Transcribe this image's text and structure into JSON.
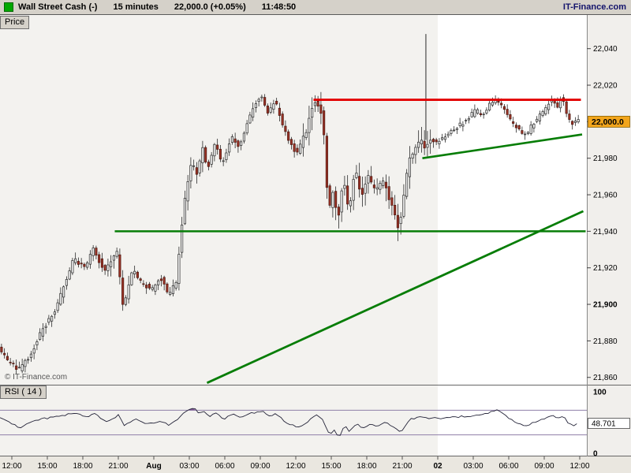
{
  "header": {
    "instrument": "Wall Street Cash (-)",
    "timeframe": "15 minutes",
    "quote": "22,000.0 (+0.05%)",
    "time": "11:48:50",
    "brand": "IT-Finance.com"
  },
  "tabs": {
    "price": "Price",
    "rsi": "RSI ( 14 )"
  },
  "watermark": "© IT-Finance.com",
  "colors": {
    "header_bg": "#d5d1c9",
    "swatch": "#00a800",
    "brand_text": "#13136b",
    "session_a": "#f3f2ef",
    "session_b": "#ffffff",
    "axis_bg": "#f1efec",
    "bottom_bg": "#eae7e0",
    "wick": "#2a2a2a",
    "up_body": "#efefef",
    "up_border": "#2a2a2a",
    "down_body": "#9c3326",
    "down_border": "#4a160f",
    "resistance": "#e30000",
    "support": "#067d06",
    "rsi_line": "#232338",
    "rsi_level": "#8f7fa8",
    "rsi_fill": "#7a4b8f",
    "current_price_bg": "#f2a51c"
  },
  "chart_data": {
    "type": "candlestick",
    "title": "Wall Street Cash, 15-minute candles with RSI(14) subpanel",
    "interval_minutes": 15,
    "x_axis": {
      "labels": [
        "12:00",
        "15:00",
        "18:00",
        "21:00",
        "Aug",
        "03:00",
        "06:00",
        "09:00",
        "12:00",
        "15:00",
        "18:00",
        "21:00",
        "02",
        "03:00",
        "06:00",
        "09:00",
        "12:00"
      ],
      "bold": [
        "Aug",
        "02"
      ],
      "hours_per_label": 3
    },
    "price_axis": {
      "min": 21856,
      "max": 22058,
      "ticks": [
        22040,
        22020,
        22000,
        21980,
        21960,
        21940,
        21920,
        21900,
        21880,
        21860
      ],
      "bold_tick": 21900,
      "current_value": 22000.0,
      "current_label": "22,000.0"
    },
    "sessions": [
      {
        "from": -1.2,
        "to": 36,
        "key": "session_a"
      },
      {
        "from": 36,
        "to": 48.7,
        "key": "session_b"
      }
    ],
    "price_path": [
      [
        -1,
        21876
      ],
      [
        -0.33,
        21870
      ],
      [
        0.67,
        21864
      ],
      [
        1.67,
        21872
      ],
      [
        2.67,
        21886
      ],
      [
        3.67,
        21895
      ],
      [
        4.67,
        21912
      ],
      [
        5.33,
        21925
      ],
      [
        6.33,
        21920
      ],
      [
        7,
        21930
      ],
      [
        8,
        21918
      ],
      [
        9,
        21928
      ],
      [
        9.53,
        21898
      ],
      [
        10.33,
        21920
      ],
      [
        11,
        21912
      ],
      [
        12,
        21908
      ],
      [
        12.67,
        21915
      ],
      [
        13.33,
        21905
      ],
      [
        14,
        21912
      ],
      [
        14.67,
        21955
      ],
      [
        15.33,
        21978
      ],
      [
        15.8,
        21970
      ],
      [
        16.2,
        21986
      ],
      [
        16.67,
        21975
      ],
      [
        17.33,
        21988
      ],
      [
        17.87,
        21976
      ],
      [
        18.67,
        21992
      ],
      [
        19.33,
        21985
      ],
      [
        20,
        22000
      ],
      [
        20.67,
        22010
      ],
      [
        21.2,
        22014
      ],
      [
        21.8,
        22005
      ],
      [
        22.33,
        22012
      ],
      [
        23,
        21998
      ],
      [
        23.53,
        21990
      ],
      [
        24.2,
        21982
      ],
      [
        25,
        21995
      ],
      [
        25.67,
        22012
      ],
      [
        26.2,
        22008
      ],
      [
        26.53,
        21990
      ],
      [
        26.87,
        21950
      ],
      [
        27.27,
        21962
      ],
      [
        27.67,
        21945
      ],
      [
        28.13,
        21970
      ],
      [
        28.6,
        21950
      ],
      [
        29.13,
        21975
      ],
      [
        29.67,
        21958
      ],
      [
        30.2,
        21970
      ],
      [
        30.87,
        21962
      ],
      [
        31.53,
        21968
      ],
      [
        32,
        21958
      ],
      [
        32.47,
        21950
      ],
      [
        32.87,
        21940
      ],
      [
        33.13,
        21955
      ],
      [
        33.67,
        21978
      ],
      [
        34.2,
        21985
      ],
      [
        34.67,
        21990
      ],
      [
        35,
        21986
      ],
      [
        35.53,
        21990
      ],
      [
        36,
        21988
      ],
      [
        36.67,
        21992
      ],
      [
        37.33,
        21996
      ],
      [
        38,
        21998
      ],
      [
        38.67,
        22002
      ],
      [
        39.33,
        22006
      ],
      [
        40,
        22004
      ],
      [
        40.47,
        22010
      ],
      [
        41,
        22012
      ],
      [
        41.53,
        22008
      ],
      [
        42,
        22004
      ],
      [
        42.47,
        21998
      ],
      [
        43,
        21996
      ],
      [
        43.53,
        21992
      ],
      [
        44.07,
        21998
      ],
      [
        44.6,
        22002
      ],
      [
        45.13,
        22006
      ],
      [
        45.67,
        22012
      ],
      [
        46.2,
        22008
      ],
      [
        46.6,
        22014
      ],
      [
        47,
        22004
      ],
      [
        47.4,
        21998
      ],
      [
        47.8,
        22000
      ]
    ],
    "last_candle_u": 47.8,
    "wick_spike": {
      "u": 34.87,
      "high": 22048,
      "base": 21990
    },
    "overlays": {
      "resistance": {
        "u1": 25.5,
        "u2": 48.1,
        "price": 22012
      },
      "support": {
        "u1": 8.7,
        "u2": 48.5,
        "price": 21940
      },
      "trendline_long": {
        "u1": 16.5,
        "p1": 21857,
        "u2": 48.3,
        "p2": 21951
      },
      "trendline_short": {
        "u1": 34.7,
        "p1": 21980,
        "u2": 48.2,
        "p2": 21993
      }
    },
    "rsi": {
      "label": "RSI ( 14 )",
      "current_value": 48.701,
      "current_label": "48.701",
      "axis": {
        "min": 0,
        "max": 100,
        "tick_labels": [
          "100",
          "0"
        ],
        "levels": [
          70,
          30
        ]
      },
      "path": [
        [
          -1,
          58
        ],
        [
          0,
          48
        ],
        [
          0.67,
          42
        ],
        [
          1.67,
          52
        ],
        [
          2.67,
          56
        ],
        [
          3.67,
          60
        ],
        [
          4.67,
          63
        ],
        [
          5.33,
          66
        ],
        [
          6.33,
          58
        ],
        [
          7,
          64
        ],
        [
          8,
          52
        ],
        [
          9,
          62
        ],
        [
          9.53,
          45
        ],
        [
          10.33,
          56
        ],
        [
          11,
          50
        ],
        [
          12,
          48
        ],
        [
          12.67,
          52
        ],
        [
          13.33,
          46
        ],
        [
          14,
          54
        ],
        [
          14.67,
          68
        ],
        [
          15.33,
          74
        ],
        [
          15.8,
          66
        ],
        [
          16.2,
          70
        ],
        [
          16.67,
          60
        ],
        [
          17.33,
          65
        ],
        [
          17.87,
          56
        ],
        [
          18.67,
          63
        ],
        [
          19.33,
          57
        ],
        [
          20,
          64
        ],
        [
          20.67,
          67
        ],
        [
          21.2,
          69
        ],
        [
          21.8,
          60
        ],
        [
          22.33,
          65
        ],
        [
          23,
          52
        ],
        [
          23.53,
          47
        ],
        [
          24.2,
          42
        ],
        [
          25,
          52
        ],
        [
          25.67,
          62
        ],
        [
          26.2,
          56
        ],
        [
          26.53,
          45
        ],
        [
          26.87,
          30
        ],
        [
          27.27,
          38
        ],
        [
          27.67,
          26
        ],
        [
          28.13,
          45
        ],
        [
          28.6,
          35
        ],
        [
          29.13,
          50
        ],
        [
          29.67,
          40
        ],
        [
          30.2,
          48
        ],
        [
          30.87,
          44
        ],
        [
          31.53,
          50
        ],
        [
          32.2,
          45
        ],
        [
          32.87,
          35
        ],
        [
          33.13,
          42
        ],
        [
          33.67,
          55
        ],
        [
          34.2,
          58
        ],
        [
          34.67,
          60
        ],
        [
          35,
          57
        ],
        [
          35.53,
          58
        ],
        [
          36,
          56
        ],
        [
          36.67,
          58
        ],
        [
          37.33,
          59
        ],
        [
          38,
          60
        ],
        [
          38.67,
          61
        ],
        [
          39.33,
          63
        ],
        [
          40,
          64
        ],
        [
          40.47,
          68
        ],
        [
          41,
          71
        ],
        [
          41.53,
          64
        ],
        [
          42,
          58
        ],
        [
          42.47,
          50
        ],
        [
          43,
          48
        ],
        [
          43.53,
          44
        ],
        [
          44.07,
          50
        ],
        [
          44.6,
          53
        ],
        [
          45.13,
          57
        ],
        [
          45.67,
          62
        ],
        [
          46.2,
          56
        ],
        [
          46.6,
          60
        ],
        [
          47,
          50
        ],
        [
          47.4,
          44
        ],
        [
          47.8,
          48.701
        ]
      ]
    }
  }
}
